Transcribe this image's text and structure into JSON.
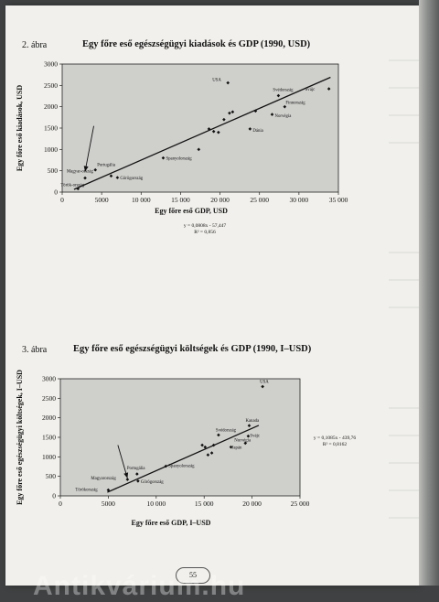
{
  "page_number": "55",
  "watermark_text": "Antikvárium.hu",
  "chart_data": [
    {
      "type": "scatter",
      "figure_label": "2. ábra",
      "title": "Egy főre eső egészségügyi kiadások és GDP (1990, USD)",
      "xlabel": "Egy főre eső GDP, USD",
      "ylabel": "Egy főre eső kiadások, USD",
      "xlim": [
        0,
        35000
      ],
      "ylim": [
        0,
        3000
      ],
      "xticks": [
        0,
        5000,
        10000,
        15000,
        20000,
        25000,
        30000,
        35000
      ],
      "xtick_labels": [
        "0",
        "5000",
        "10 000",
        "15 000",
        "20 000",
        "25 000",
        "30 000",
        "35 000"
      ],
      "yticks": [
        0,
        500,
        1000,
        1500,
        2000,
        2500,
        3000
      ],
      "ytick_labels": [
        "0",
        "500",
        "1000",
        "1500",
        "2000",
        "2500",
        "3000"
      ],
      "grid": false,
      "equation": "y = 0,0808x - 57,447",
      "r_squared": "R² = 0,856",
      "trendline": {
        "slope": 0.0808,
        "intercept": -57.447,
        "x_range": [
          1500,
          34000
        ]
      },
      "arrow": {
        "from": [
          4000,
          1550
        ],
        "to": [
          2900,
          480
        ]
      },
      "points": [
        {
          "x": 2000,
          "y": 80,
          "label": "Török-ország"
        },
        {
          "x": 2900,
          "y": 330,
          "label": "Magyar-ország"
        },
        {
          "x": 4200,
          "y": 520,
          "label": "Portugália"
        },
        {
          "x": 6200,
          "y": 380,
          "label": ""
        },
        {
          "x": 7000,
          "y": 340,
          "label": "Görögország"
        },
        {
          "x": 12800,
          "y": 800,
          "label": "Spanyolország"
        },
        {
          "x": 17300,
          "y": 1000,
          "label": ""
        },
        {
          "x": 18600,
          "y": 1480,
          "label": ""
        },
        {
          "x": 19200,
          "y": 1420,
          "label": ""
        },
        {
          "x": 19800,
          "y": 1400,
          "label": ""
        },
        {
          "x": 20500,
          "y": 1700,
          "label": ""
        },
        {
          "x": 21200,
          "y": 1850,
          "label": ""
        },
        {
          "x": 21600,
          "y": 1880,
          "label": ""
        },
        {
          "x": 21000,
          "y": 2560,
          "label": "USA"
        },
        {
          "x": 23800,
          "y": 1480,
          "label": "Dánia"
        },
        {
          "x": 24500,
          "y": 1900,
          "label": ""
        },
        {
          "x": 26600,
          "y": 1820,
          "label": "Norvégia"
        },
        {
          "x": 27400,
          "y": 2260,
          "label": "Svédország"
        },
        {
          "x": 28200,
          "y": 2000,
          "label": "Finnország"
        },
        {
          "x": 33800,
          "y": 2420,
          "label": "Svájc"
        }
      ]
    },
    {
      "type": "scatter",
      "figure_label": "3. ábra",
      "title": "Egy főre eső egészségügyi költségek és GDP (1990, I–USD)",
      "xlabel": "Egy főre eső GDP, I–USD",
      "ylabel": "Egy főre eső egészségügyi költségek, I–USD",
      "xlim": [
        0,
        25000
      ],
      "ylim": [
        0,
        3000
      ],
      "xticks": [
        0,
        5000,
        10000,
        15000,
        20000,
        25000
      ],
      "xtick_labels": [
        "0",
        "5000",
        "10 000",
        "15 000",
        "20 000",
        "25 000"
      ],
      "yticks": [
        0,
        500,
        1000,
        1500,
        2000,
        2500,
        3000
      ],
      "ytick_labels": [
        "0",
        "500",
        "1000",
        "1500",
        "2000",
        "2500",
        "3000"
      ],
      "grid": false,
      "equation": "y = 0,1085x - 439,76",
      "r_squared": "R² = 0,8162",
      "trendline": {
        "slope": 0.1085,
        "intercept": -439.76,
        "x_range": [
          4900,
          20700
        ]
      },
      "arrow": {
        "from": [
          6000,
          1300
        ],
        "to": [
          7000,
          450
        ]
      },
      "points": [
        {
          "x": 5000,
          "y": 150,
          "label": "Törökország"
        },
        {
          "x": 7000,
          "y": 420,
          "label": "Magyarország"
        },
        {
          "x": 8000,
          "y": 560,
          "label": "Portugália"
        },
        {
          "x": 8100,
          "y": 380,
          "label": "Görögország"
        },
        {
          "x": 11000,
          "y": 760,
          "label": "Spanyolország"
        },
        {
          "x": 14800,
          "y": 1300,
          "label": ""
        },
        {
          "x": 15100,
          "y": 1250,
          "label": ""
        },
        {
          "x": 15400,
          "y": 1050,
          "label": ""
        },
        {
          "x": 15800,
          "y": 1100,
          "label": ""
        },
        {
          "x": 16000,
          "y": 1300,
          "label": ""
        },
        {
          "x": 16500,
          "y": 1560,
          "label": "Svédország"
        },
        {
          "x": 17800,
          "y": 1250,
          "label": "Japán"
        },
        {
          "x": 19300,
          "y": 1350,
          "label": "Norvégia"
        },
        {
          "x": 19600,
          "y": 1530,
          "label": "Svájc"
        },
        {
          "x": 19700,
          "y": 1800,
          "label": "Kanada"
        },
        {
          "x": 21100,
          "y": 2800,
          "label": "USA"
        }
      ]
    }
  ]
}
